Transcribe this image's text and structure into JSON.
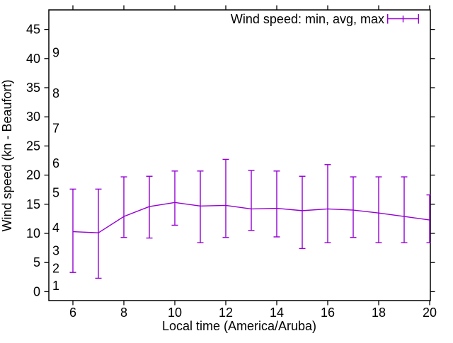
{
  "chart_data": {
    "type": "line",
    "subtype": "line_with_yerrorbars",
    "legend_label": "Wind speed: min, avg, max",
    "xlabel": "Local time (America/Aruba)",
    "ylabel": "Wind speed (kn - Beaufort)",
    "x_ticks": [
      6,
      8,
      10,
      12,
      14,
      16,
      18,
      20
    ],
    "y_ticks": [
      0,
      5,
      10,
      15,
      20,
      25,
      30,
      35,
      40,
      45
    ],
    "xlim": [
      5.05,
      20.05
    ],
    "ylim": [
      -1.6,
      48.4
    ],
    "grid": false,
    "legend_position": "top-right-inside",
    "beaufort_scale_labels": [
      {
        "label": "1",
        "kn": 1
      },
      {
        "label": "2",
        "kn": 4
      },
      {
        "label": "3",
        "kn": 7
      },
      {
        "label": "4",
        "kn": 11
      },
      {
        "label": "5",
        "kn": 17
      },
      {
        "label": "6",
        "kn": 22
      },
      {
        "label": "7",
        "kn": 28
      },
      {
        "label": "8",
        "kn": 34
      },
      {
        "label": "9",
        "kn": 41
      }
    ],
    "hours": [
      6,
      7,
      8,
      9,
      10,
      11,
      12,
      13,
      14,
      15,
      16,
      17,
      18,
      19,
      20
    ],
    "series": [
      {
        "name": "min",
        "values": [
          3.3,
          2.3,
          9.3,
          9.2,
          11.4,
          8.4,
          9.3,
          10.5,
          9.4,
          7.4,
          8.4,
          9.3,
          8.4,
          8.4,
          8.4
        ]
      },
      {
        "name": "avg",
        "values": [
          10.3,
          10.1,
          12.9,
          14.6,
          15.3,
          14.7,
          14.8,
          14.2,
          14.3,
          13.9,
          14.2,
          14.0,
          13.5,
          12.9,
          12.3
        ]
      },
      {
        "name": "max",
        "values": [
          17.6,
          17.6,
          19.7,
          19.8,
          20.7,
          20.7,
          22.7,
          20.8,
          20.7,
          19.8,
          21.8,
          19.7,
          19.7,
          19.7,
          16.6
        ]
      }
    ],
    "colors": {
      "series": "#9400d3",
      "axis": "#000000",
      "background": "#ffffff"
    }
  }
}
